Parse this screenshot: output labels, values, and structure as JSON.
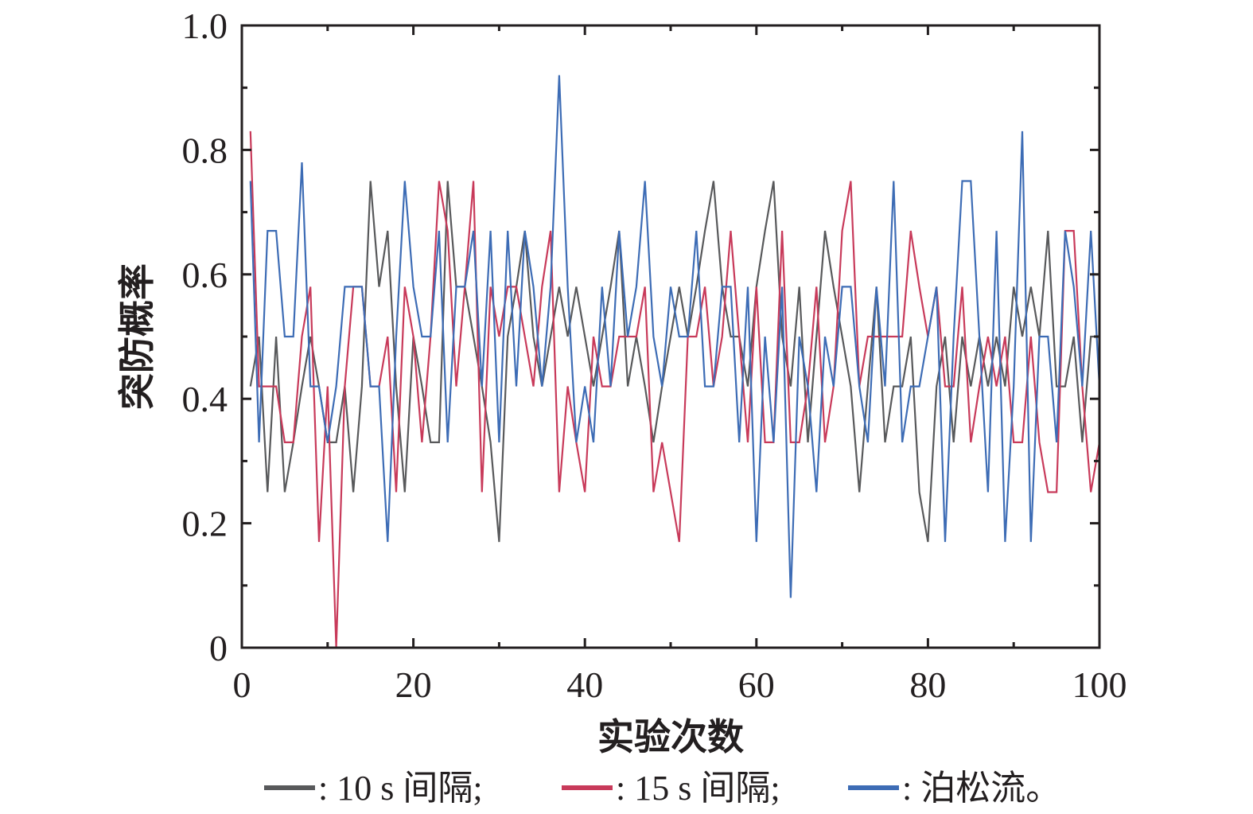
{
  "chart_data": {
    "type": "line",
    "xlabel": "实验次数",
    "ylabel": "突防概率",
    "xlim": [
      0,
      100
    ],
    "ylim": [
      0,
      1.0
    ],
    "x_ticks": [
      0,
      20,
      40,
      60,
      80,
      100
    ],
    "x_tick_labels": [
      "0",
      "20",
      "40",
      "60",
      "80",
      "100"
    ],
    "y_ticks": [
      0,
      0.2,
      0.4,
      0.6,
      0.8,
      1.0
    ],
    "y_tick_labels": [
      "0",
      "0.2",
      "0.4",
      "0.6",
      "0.8",
      "1.0"
    ],
    "grid": false,
    "legend_position": "bottom",
    "x": [
      1,
      2,
      3,
      4,
      5,
      6,
      7,
      8,
      9,
      10,
      11,
      12,
      13,
      14,
      15,
      16,
      17,
      18,
      19,
      20,
      21,
      22,
      23,
      24,
      25,
      26,
      27,
      28,
      29,
      30,
      31,
      32,
      33,
      34,
      35,
      36,
      37,
      38,
      39,
      40,
      41,
      42,
      43,
      44,
      45,
      46,
      47,
      48,
      49,
      50,
      51,
      52,
      53,
      54,
      55,
      56,
      57,
      58,
      59,
      60,
      61,
      62,
      63,
      64,
      65,
      66,
      67,
      68,
      69,
      70,
      71,
      72,
      73,
      74,
      75,
      76,
      77,
      78,
      79,
      80,
      81,
      82,
      83,
      84,
      85,
      86,
      87,
      88,
      89,
      90,
      91,
      92,
      93,
      94,
      95,
      96,
      97,
      98,
      99,
      100
    ],
    "series": [
      {
        "name": "10 s 间隔",
        "legend_label": ": 10 s 间隔;",
        "color": "#58595b",
        "values": [
          0.42,
          0.5,
          0.25,
          0.5,
          0.25,
          0.33,
          0.42,
          0.5,
          0.42,
          0.33,
          0.33,
          0.42,
          0.25,
          0.42,
          0.75,
          0.58,
          0.67,
          0.42,
          0.25,
          0.5,
          0.42,
          0.33,
          0.33,
          0.75,
          0.58,
          0.58,
          0.5,
          0.42,
          0.33,
          0.17,
          0.5,
          0.58,
          0.67,
          0.5,
          0.42,
          0.5,
          0.58,
          0.5,
          0.58,
          0.5,
          0.42,
          0.5,
          0.58,
          0.67,
          0.42,
          0.5,
          0.42,
          0.33,
          0.42,
          0.5,
          0.58,
          0.5,
          0.58,
          0.67,
          0.75,
          0.58,
          0.5,
          0.5,
          0.42,
          0.58,
          0.67,
          0.75,
          0.5,
          0.42,
          0.58,
          0.33,
          0.5,
          0.67,
          0.58,
          0.5,
          0.42,
          0.25,
          0.42,
          0.58,
          0.33,
          0.42,
          0.42,
          0.5,
          0.25,
          0.17,
          0.42,
          0.5,
          0.33,
          0.5,
          0.42,
          0.5,
          0.42,
          0.5,
          0.42,
          0.58,
          0.5,
          0.58,
          0.5,
          0.67,
          0.42,
          0.42,
          0.5,
          0.33,
          0.5,
          0.5
        ]
      },
      {
        "name": "15 s 间隔",
        "legend_label": ": 15 s 间隔;",
        "color": "#c83a5a",
        "values": [
          0.83,
          0.42,
          0.42,
          0.42,
          0.33,
          0.33,
          0.5,
          0.58,
          0.17,
          0.42,
          0.0,
          0.42,
          0.58,
          0.58,
          0.42,
          0.42,
          0.5,
          0.25,
          0.58,
          0.5,
          0.33,
          0.5,
          0.75,
          0.67,
          0.42,
          0.58,
          0.75,
          0.25,
          0.58,
          0.5,
          0.58,
          0.58,
          0.5,
          0.42,
          0.58,
          0.67,
          0.25,
          0.42,
          0.33,
          0.25,
          0.5,
          0.42,
          0.42,
          0.5,
          0.5,
          0.5,
          0.58,
          0.25,
          0.33,
          0.25,
          0.17,
          0.5,
          0.5,
          0.58,
          0.42,
          0.5,
          0.67,
          0.5,
          0.33,
          0.58,
          0.33,
          0.33,
          0.67,
          0.33,
          0.33,
          0.42,
          0.58,
          0.33,
          0.42,
          0.67,
          0.75,
          0.42,
          0.5,
          0.5,
          0.5,
          0.5,
          0.5,
          0.67,
          0.58,
          0.5,
          0.58,
          0.42,
          0.42,
          0.58,
          0.33,
          0.42,
          0.5,
          0.42,
          0.5,
          0.33,
          0.33,
          0.5,
          0.33,
          0.25,
          0.25,
          0.67,
          0.67,
          0.42,
          0.25,
          0.33
        ]
      },
      {
        "name": "泊松流",
        "legend_label": ": 泊松流。",
        "color": "#3d6cb5",
        "values": [
          0.75,
          0.33,
          0.67,
          0.67,
          0.5,
          0.5,
          0.78,
          0.42,
          0.42,
          0.33,
          0.42,
          0.58,
          0.58,
          0.58,
          0.42,
          0.42,
          0.17,
          0.5,
          0.75,
          0.58,
          0.5,
          0.5,
          0.67,
          0.33,
          0.58,
          0.58,
          0.67,
          0.42,
          0.67,
          0.33,
          0.67,
          0.42,
          0.67,
          0.58,
          0.42,
          0.58,
          0.92,
          0.58,
          0.33,
          0.42,
          0.33,
          0.58,
          0.42,
          0.67,
          0.5,
          0.58,
          0.75,
          0.5,
          0.42,
          0.58,
          0.5,
          0.5,
          0.67,
          0.42,
          0.42,
          0.58,
          0.58,
          0.33,
          0.58,
          0.17,
          0.5,
          0.33,
          0.58,
          0.08,
          0.5,
          0.42,
          0.25,
          0.5,
          0.42,
          0.58,
          0.58,
          0.42,
          0.33,
          0.58,
          0.42,
          0.75,
          0.33,
          0.42,
          0.42,
          0.5,
          0.58,
          0.17,
          0.5,
          0.75,
          0.75,
          0.5,
          0.25,
          0.67,
          0.17,
          0.42,
          0.83,
          0.17,
          0.5,
          0.5,
          0.33,
          0.67,
          0.58,
          0.42,
          0.67,
          0.42
        ]
      }
    ]
  }
}
